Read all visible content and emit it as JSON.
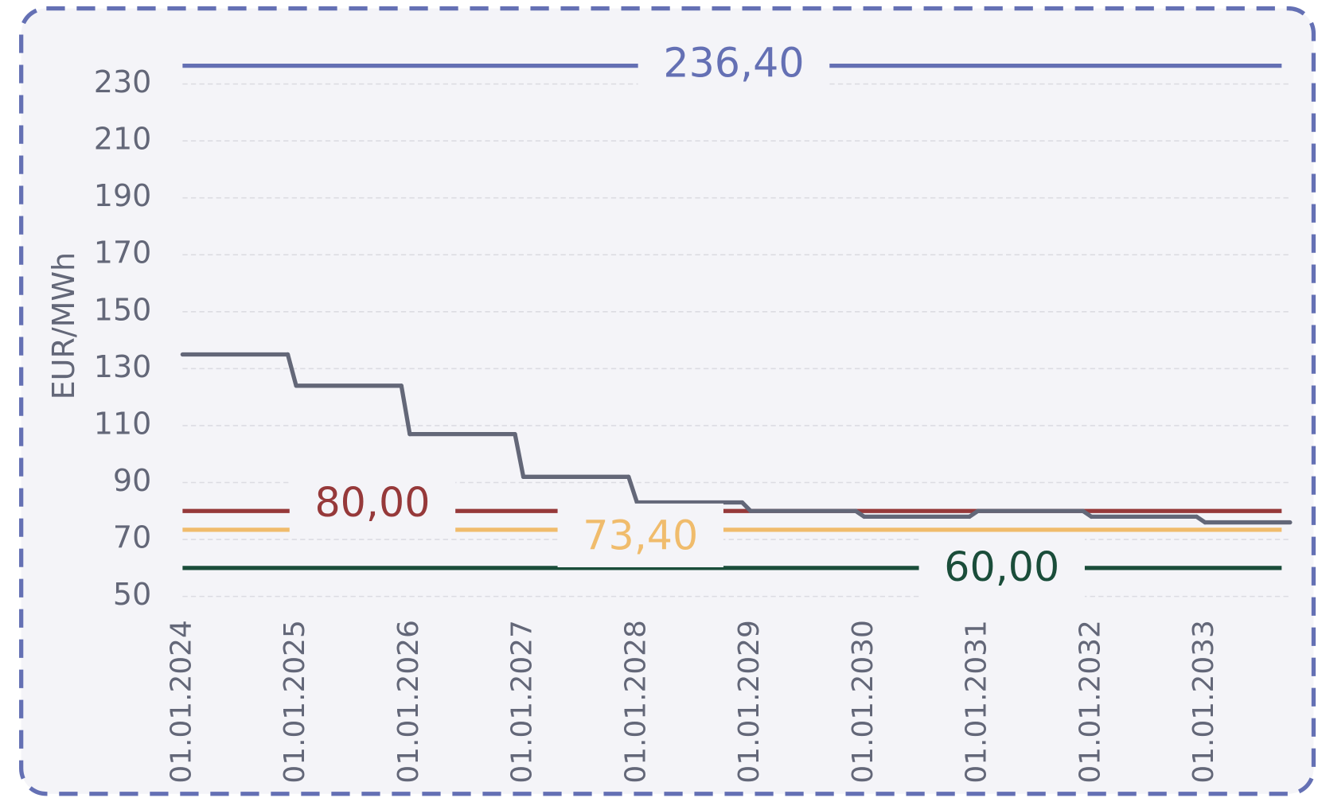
{
  "chart_data": {
    "type": "line",
    "y_label": "EUR/MWh",
    "categories": [
      "01.01.2024",
      "01.01.2025",
      "01.01.2026",
      "01.01.2027",
      "01.01.2028",
      "01.01.2029",
      "01.01.2030",
      "01.01.2031",
      "01.01.2032",
      "01.01.2033"
    ],
    "series": [
      {
        "color": "#636778",
        "values": [
          135,
          124,
          107,
          92,
          83,
          80,
          78,
          80,
          78,
          76
        ]
      }
    ],
    "reference_lines": [
      {
        "value": 236.4,
        "label": "236,40",
        "color": "#6470b4"
      },
      {
        "value": 80,
        "label": "80,00",
        "color": "#96393a"
      },
      {
        "value": 73.4,
        "label": "73,40",
        "color": "#f0bc6c"
      },
      {
        "value": 60,
        "label": "60,00",
        "color": "#1a4d3a"
      }
    ],
    "ylim": [
      50,
      235
    ],
    "yticks": [
      50,
      70,
      90,
      110,
      130,
      150,
      170,
      190,
      210,
      230
    ],
    "grid": true
  }
}
